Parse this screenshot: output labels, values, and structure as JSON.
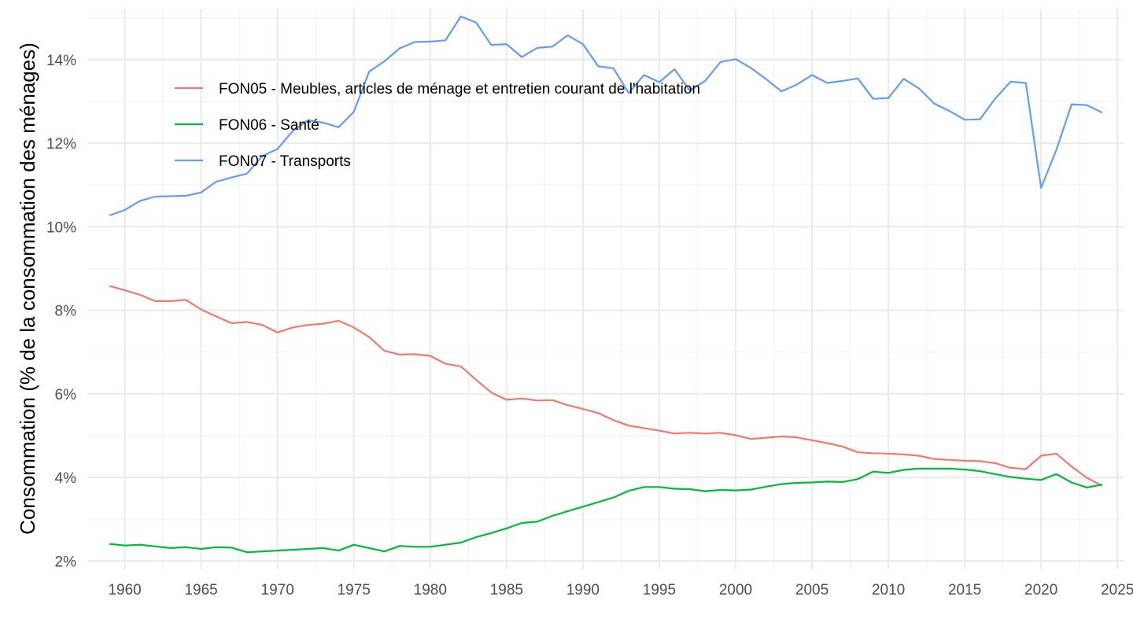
{
  "chart_data": {
    "type": "line",
    "title": "",
    "xlabel": "",
    "ylabel": "Consommation (% de la consommation des ménages)",
    "xlim": [
      1957.6,
      2025.4
    ],
    "ylim": [
      1.8,
      15.2
    ],
    "x_ticks": [
      1960,
      1965,
      1970,
      1975,
      1980,
      1985,
      1990,
      1995,
      2000,
      2005,
      2010,
      2015,
      2020,
      2025
    ],
    "x_tick_labels": [
      "1960",
      "1965",
      "1970",
      "1975",
      "1980",
      "1985",
      "1990",
      "1995",
      "2000",
      "2005",
      "2010",
      "2015",
      "2020",
      "2025"
    ],
    "y_ticks": [
      2,
      4,
      6,
      8,
      10,
      12,
      14
    ],
    "y_tick_labels": [
      "2%",
      "4%",
      "6%",
      "8%",
      "10%",
      "12%",
      "14%"
    ],
    "grid": true,
    "legend_position": "top-left",
    "x": [
      1959,
      1960,
      1961,
      1962,
      1963,
      1964,
      1965,
      1966,
      1967,
      1968,
      1969,
      1970,
      1971,
      1972,
      1973,
      1974,
      1975,
      1976,
      1977,
      1978,
      1979,
      1980,
      1981,
      1982,
      1983,
      1984,
      1985,
      1986,
      1987,
      1988,
      1989,
      1990,
      1991,
      1992,
      1993,
      1994,
      1995,
      1996,
      1997,
      1998,
      1999,
      2000,
      2001,
      2002,
      2003,
      2004,
      2005,
      2006,
      2007,
      2008,
      2009,
      2010,
      2011,
      2012,
      2013,
      2014,
      2015,
      2016,
      2017,
      2018,
      2019,
      2020,
      2021,
      2022,
      2023,
      2024
    ],
    "series": [
      {
        "name": "FON05 - Meubles, articles de ménage et entretien courant de l'habitation",
        "color": "#F8766D",
        "values": [
          8.58,
          8.48,
          8.37,
          8.22,
          8.22,
          8.25,
          8.02,
          7.85,
          7.69,
          7.72,
          7.65,
          7.47,
          7.59,
          7.65,
          7.68,
          7.75,
          7.59,
          7.36,
          7.03,
          6.94,
          6.95,
          6.91,
          6.72,
          6.66,
          6.34,
          6.03,
          5.86,
          5.89,
          5.84,
          5.85,
          5.73,
          5.64,
          5.54,
          5.37,
          5.24,
          5.18,
          5.12,
          5.05,
          5.07,
          5.05,
          5.07,
          5.01,
          4.92,
          4.95,
          4.98,
          4.96,
          4.89,
          4.82,
          4.74,
          4.6,
          4.58,
          4.57,
          4.55,
          4.52,
          4.44,
          4.42,
          4.4,
          4.39,
          4.34,
          4.23,
          4.2,
          4.52,
          4.57,
          4.26,
          3.99,
          3.8
        ]
      },
      {
        "name": "FON06 - Santé",
        "color": "#00BA38",
        "values": [
          2.41,
          2.37,
          2.39,
          2.35,
          2.31,
          2.33,
          2.29,
          2.33,
          2.32,
          2.21,
          2.23,
          2.25,
          2.27,
          2.29,
          2.31,
          2.25,
          2.39,
          2.31,
          2.23,
          2.36,
          2.34,
          2.34,
          2.39,
          2.44,
          2.57,
          2.67,
          2.78,
          2.91,
          2.94,
          3.08,
          3.19,
          3.3,
          3.41,
          3.52,
          3.68,
          3.77,
          3.77,
          3.73,
          3.72,
          3.67,
          3.7,
          3.69,
          3.71,
          3.78,
          3.84,
          3.87,
          3.88,
          3.9,
          3.89,
          3.96,
          4.14,
          4.11,
          4.18,
          4.21,
          4.21,
          4.21,
          4.19,
          4.15,
          4.08,
          4.01,
          3.97,
          3.94,
          4.08,
          3.88,
          3.76,
          3.83
        ]
      },
      {
        "name": "FON07 - Transports",
        "color": "#619CFF",
        "values": [
          10.27,
          10.4,
          10.62,
          10.72,
          10.73,
          10.74,
          10.82,
          11.08,
          11.18,
          11.27,
          11.69,
          11.86,
          12.29,
          12.55,
          12.49,
          12.38,
          12.75,
          13.71,
          13.96,
          14.27,
          14.42,
          14.43,
          14.46,
          15.03,
          14.89,
          14.35,
          14.37,
          14.06,
          14.28,
          14.31,
          14.58,
          14.37,
          13.84,
          13.79,
          13.2,
          13.63,
          13.46,
          13.77,
          13.26,
          13.49,
          13.94,
          14.01,
          13.8,
          13.53,
          13.24,
          13.4,
          13.63,
          13.44,
          13.49,
          13.55,
          13.06,
          13.08,
          13.54,
          13.31,
          12.95,
          12.77,
          12.56,
          12.57,
          13.07,
          13.47,
          13.44,
          10.93,
          11.84,
          12.93,
          12.91,
          12.73
        ]
      }
    ]
  }
}
